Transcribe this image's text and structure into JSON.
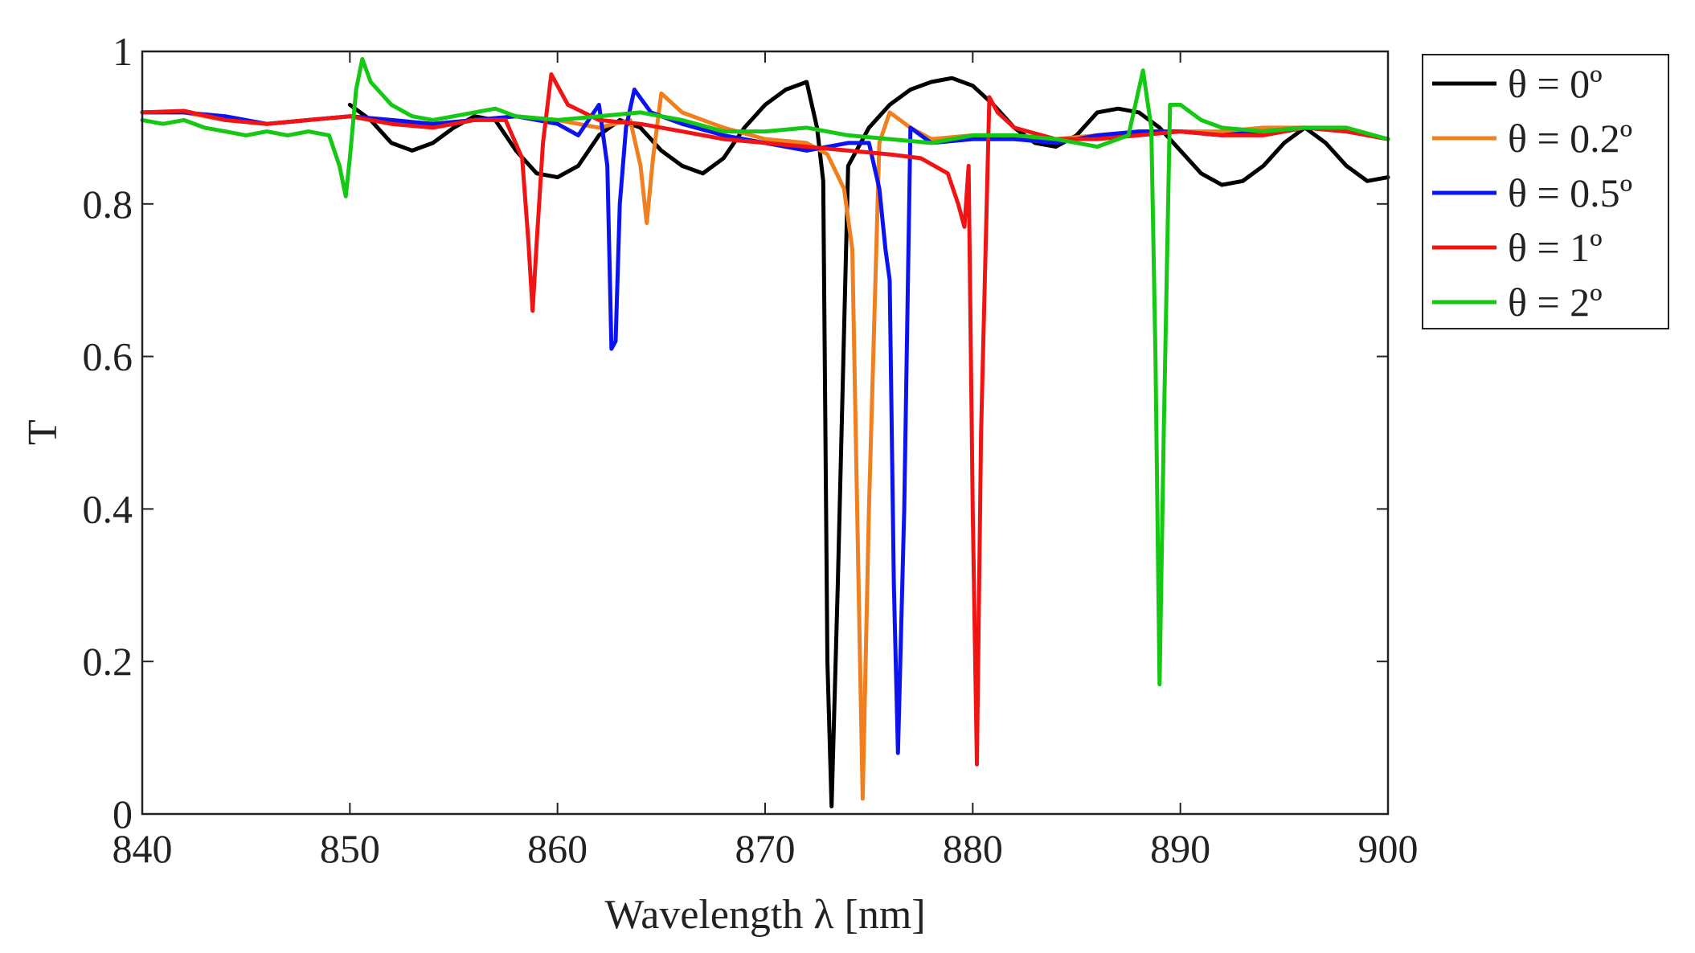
{
  "chart_data": {
    "type": "line",
    "title": "",
    "xlabel": "Wavelength λ [nm]",
    "ylabel": "T",
    "xlim": [
      840,
      900
    ],
    "ylim": [
      0,
      1
    ],
    "xticks": [
      840,
      850,
      860,
      870,
      880,
      890,
      900
    ],
    "xtick_labels": [
      "840",
      "850",
      "860",
      "870",
      "880",
      "890",
      "900"
    ],
    "yticks": [
      0,
      0.2,
      0.4,
      0.6,
      0.8,
      1
    ],
    "ytick_labels": [
      "0",
      "0.2",
      "0.4",
      "0.6",
      "0.8",
      "1"
    ],
    "legend_position": "outside-top-right",
    "grid": false,
    "series": [
      {
        "name": "θ = 0º",
        "legend_label": "θ = 0º",
        "color": "#000000",
        "x": [
          850,
          851,
          852,
          853,
          854,
          855,
          856,
          857,
          858,
          859,
          860,
          861,
          862,
          863,
          864,
          865,
          866,
          867,
          868,
          869,
          870,
          871,
          872,
          872.5,
          872.8,
          873.0,
          873.2,
          873.5,
          874,
          875,
          876,
          877,
          878,
          879,
          880,
          881,
          882,
          883,
          884,
          885,
          886,
          887,
          888,
          889,
          890,
          891,
          892,
          893,
          894,
          895,
          896,
          897,
          898,
          899,
          900
        ],
        "y": [
          0.93,
          0.91,
          0.88,
          0.87,
          0.88,
          0.9,
          0.915,
          0.91,
          0.87,
          0.84,
          0.835,
          0.85,
          0.89,
          0.91,
          0.9,
          0.87,
          0.85,
          0.84,
          0.86,
          0.9,
          0.93,
          0.95,
          0.96,
          0.9,
          0.83,
          0.2,
          0.01,
          0.3,
          0.85,
          0.9,
          0.93,
          0.95,
          0.96,
          0.965,
          0.955,
          0.93,
          0.9,
          0.88,
          0.875,
          0.89,
          0.92,
          0.925,
          0.92,
          0.9,
          0.87,
          0.84,
          0.825,
          0.83,
          0.85,
          0.88,
          0.9,
          0.88,
          0.85,
          0.83,
          0.835
        ]
      },
      {
        "name": "θ = 0.2º",
        "legend_label": "θ = 0.2º",
        "color": "#f07f1f",
        "x": [
          840,
          842,
          844,
          846,
          848,
          850,
          852,
          854,
          856,
          858,
          860,
          862,
          863.5,
          864.0,
          864.3,
          864.6,
          865,
          866,
          868,
          870,
          872,
          873,
          873.8,
          874.2,
          874.5,
          874.7,
          875.0,
          875.5,
          876,
          877,
          878,
          880,
          882,
          884,
          886,
          888,
          890,
          892,
          894,
          896,
          898,
          900
        ],
        "y": [
          0.92,
          0.92,
          0.91,
          0.905,
          0.91,
          0.915,
          0.91,
          0.905,
          0.91,
          0.915,
          0.91,
          0.9,
          0.91,
          0.85,
          0.775,
          0.86,
          0.945,
          0.92,
          0.9,
          0.885,
          0.88,
          0.865,
          0.82,
          0.74,
          0.3,
          0.02,
          0.4,
          0.88,
          0.92,
          0.9,
          0.885,
          0.89,
          0.89,
          0.885,
          0.89,
          0.895,
          0.895,
          0.895,
          0.9,
          0.9,
          0.895,
          0.885
        ]
      },
      {
        "name": "θ = 0.5º",
        "legend_label": "θ = 0.5º",
        "color": "#0b14f0",
        "x": [
          840,
          842,
          844,
          846,
          848,
          850,
          852,
          854,
          856,
          858,
          860,
          861,
          862,
          862.4,
          862.6,
          862.8,
          863.0,
          863.3,
          863.7,
          864.5,
          866,
          868,
          870,
          872,
          874,
          875,
          875.5,
          875.8,
          876.0,
          876.2,
          876.4,
          876.7,
          877,
          878,
          880,
          882,
          884,
          886,
          888,
          890,
          892,
          894,
          896,
          898,
          900
        ],
        "y": [
          0.92,
          0.92,
          0.915,
          0.905,
          0.91,
          0.915,
          0.91,
          0.905,
          0.91,
          0.915,
          0.905,
          0.89,
          0.93,
          0.85,
          0.61,
          0.62,
          0.8,
          0.9,
          0.95,
          0.92,
          0.905,
          0.89,
          0.88,
          0.87,
          0.88,
          0.88,
          0.82,
          0.74,
          0.7,
          0.3,
          0.08,
          0.4,
          0.9,
          0.88,
          0.885,
          0.885,
          0.88,
          0.89,
          0.895,
          0.895,
          0.89,
          0.895,
          0.9,
          0.895,
          0.885
        ]
      },
      {
        "name": "θ = 1º",
        "legend_label": "θ = 1º",
        "color": "#f01414",
        "x": [
          840,
          842,
          844,
          846,
          848,
          850,
          852,
          854,
          856,
          857.5,
          858.3,
          858.6,
          858.8,
          859.0,
          859.3,
          859.7,
          860.5,
          862,
          864,
          866,
          868,
          870,
          872,
          874,
          876,
          877.5,
          878.8,
          879.3,
          879.6,
          879.8,
          880.0,
          880.2,
          880.4,
          880.8,
          881.2,
          882,
          884,
          886,
          888,
          890,
          892,
          894,
          896,
          898,
          900
        ],
        "y": [
          0.92,
          0.922,
          0.91,
          0.905,
          0.91,
          0.915,
          0.905,
          0.9,
          0.91,
          0.91,
          0.86,
          0.75,
          0.66,
          0.75,
          0.88,
          0.97,
          0.93,
          0.91,
          0.905,
          0.895,
          0.885,
          0.88,
          0.875,
          0.87,
          0.865,
          0.86,
          0.84,
          0.8,
          0.77,
          0.85,
          0.4,
          0.065,
          0.5,
          0.94,
          0.92,
          0.9,
          0.885,
          0.885,
          0.89,
          0.895,
          0.89,
          0.89,
          0.9,
          0.895,
          0.885
        ]
      },
      {
        "name": "θ = 2º",
        "legend_label": "θ = 2º",
        "color": "#14c814",
        "x": [
          840,
          841,
          842,
          843,
          844,
          845,
          846,
          847,
          848,
          849,
          849.5,
          849.8,
          850.0,
          850.3,
          850.6,
          851,
          852,
          853,
          854,
          855,
          856,
          857,
          858,
          860,
          862,
          864,
          866,
          868,
          870,
          872,
          874,
          876,
          878,
          880,
          882,
          884,
          886,
          887.5,
          888.2,
          888.6,
          888.8,
          889.0,
          889.2,
          889.5,
          890,
          891,
          892,
          894,
          896,
          898,
          900
        ],
        "y": [
          0.91,
          0.905,
          0.91,
          0.9,
          0.895,
          0.89,
          0.895,
          0.89,
          0.895,
          0.89,
          0.85,
          0.81,
          0.86,
          0.95,
          0.99,
          0.96,
          0.93,
          0.915,
          0.91,
          0.915,
          0.92,
          0.925,
          0.915,
          0.91,
          0.915,
          0.92,
          0.91,
          0.895,
          0.895,
          0.9,
          0.89,
          0.885,
          0.88,
          0.89,
          0.89,
          0.885,
          0.875,
          0.89,
          0.975,
          0.9,
          0.6,
          0.17,
          0.5,
          0.93,
          0.93,
          0.91,
          0.9,
          0.895,
          0.9,
          0.9,
          0.885
        ]
      }
    ]
  }
}
